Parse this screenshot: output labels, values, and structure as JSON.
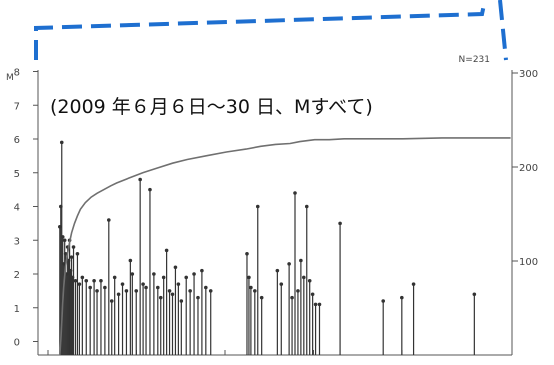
{
  "annotation": "(2009 年６月６日〜30 日、Mすべて)",
  "n_label": "N=231",
  "colors": {
    "frame": "#1e6fd0",
    "axis": "#555555",
    "stem": "#333333",
    "cum_line": "#707070"
  },
  "chart_data": {
    "type": "line",
    "title": "",
    "xlabel": "",
    "ylabel": "M",
    "y2label": "",
    "ylim": [
      0,
      8.6
    ],
    "y2lim": [
      0,
      300
    ],
    "yticks": [
      0,
      1,
      2,
      3,
      4,
      5,
      6,
      7,
      8
    ],
    "y2ticks": [
      100,
      200,
      300
    ],
    "grid": false,
    "legend": "none",
    "series": [
      {
        "kind": "stem",
        "points": [
          {
            "x": 10,
            "y": 3.4
          },
          {
            "x": 11,
            "y": 4.0
          },
          {
            "x": 12,
            "y": 5.9
          },
          {
            "x": 13,
            "y": 3.1
          },
          {
            "x": 14,
            "y": 2.3
          },
          {
            "x": 15,
            "y": 3.0
          },
          {
            "x": 16,
            "y": 2.6
          },
          {
            "x": 17,
            "y": 2.0
          },
          {
            "x": 18,
            "y": 2.8
          },
          {
            "x": 19,
            "y": 2.4
          },
          {
            "x": 20,
            "y": 3.0
          },
          {
            "x": 21,
            "y": 2.1
          },
          {
            "x": 22,
            "y": 2.5
          },
          {
            "x": 23,
            "y": 1.9
          },
          {
            "x": 24,
            "y": 2.8
          },
          {
            "x": 26,
            "y": 1.8
          },
          {
            "x": 28,
            "y": 2.6
          },
          {
            "x": 30,
            "y": 1.7
          },
          {
            "x": 33,
            "y": 1.9
          },
          {
            "x": 37,
            "y": 1.8
          },
          {
            "x": 41,
            "y": 1.6
          },
          {
            "x": 45,
            "y": 1.8
          },
          {
            "x": 48,
            "y": 1.5
          },
          {
            "x": 52,
            "y": 1.8
          },
          {
            "x": 56,
            "y": 1.6
          },
          {
            "x": 60,
            "y": 3.6
          },
          {
            "x": 63,
            "y": 1.2
          },
          {
            "x": 66,
            "y": 1.9
          },
          {
            "x": 70,
            "y": 1.4
          },
          {
            "x": 74,
            "y": 1.7
          },
          {
            "x": 78,
            "y": 1.5
          },
          {
            "x": 82,
            "y": 2.4
          },
          {
            "x": 84,
            "y": 2.0
          },
          {
            "x": 88,
            "y": 1.5
          },
          {
            "x": 92,
            "y": 4.8
          },
          {
            "x": 95,
            "y": 1.7
          },
          {
            "x": 98,
            "y": 1.6
          },
          {
            "x": 102,
            "y": 4.5
          },
          {
            "x": 106,
            "y": 2.0
          },
          {
            "x": 110,
            "y": 1.6
          },
          {
            "x": 113,
            "y": 1.3
          },
          {
            "x": 116,
            "y": 1.9
          },
          {
            "x": 119,
            "y": 2.7
          },
          {
            "x": 122,
            "y": 1.5
          },
          {
            "x": 125,
            "y": 1.4
          },
          {
            "x": 128,
            "y": 2.2
          },
          {
            "x": 131,
            "y": 1.7
          },
          {
            "x": 134,
            "y": 1.2
          },
          {
            "x": 139,
            "y": 1.9
          },
          {
            "x": 143,
            "y": 1.5
          },
          {
            "x": 147,
            "y": 2.0
          },
          {
            "x": 151,
            "y": 1.3
          },
          {
            "x": 155,
            "y": 2.1
          },
          {
            "x": 159,
            "y": 1.6
          },
          {
            "x": 164,
            "y": 1.5
          },
          {
            "x": 201,
            "y": 2.6
          },
          {
            "x": 203,
            "y": 1.9
          },
          {
            "x": 205,
            "y": 1.6
          },
          {
            "x": 209,
            "y": 1.5
          },
          {
            "x": 212,
            "y": 4.0
          },
          {
            "x": 216,
            "y": 1.3
          },
          {
            "x": 232,
            "y": 2.1
          },
          {
            "x": 236,
            "y": 1.7
          },
          {
            "x": 244,
            "y": 2.3
          },
          {
            "x": 247,
            "y": 1.3
          },
          {
            "x": 250,
            "y": 4.4
          },
          {
            "x": 253,
            "y": 1.5
          },
          {
            "x": 256,
            "y": 2.4
          },
          {
            "x": 259,
            "y": 1.9
          },
          {
            "x": 262,
            "y": 4.0
          },
          {
            "x": 265,
            "y": 1.8
          },
          {
            "x": 268,
            "y": 1.4
          },
          {
            "x": 271,
            "y": 1.1
          },
          {
            "x": 275,
            "y": 1.1
          },
          {
            "x": 296,
            "y": 3.5
          },
          {
            "x": 340,
            "y": 1.2
          },
          {
            "x": 359,
            "y": 1.3
          },
          {
            "x": 371,
            "y": 1.7
          },
          {
            "x": 433,
            "y": 1.4
          }
        ]
      },
      {
        "kind": "cumulative",
        "axis": "right",
        "x": [
          10,
          11,
          12,
          13,
          14,
          15,
          16,
          18,
          20,
          22,
          25,
          28,
          31,
          36,
          42,
          48,
          55,
          62,
          68,
          80,
          95,
          110,
          125,
          140,
          160,
          180,
          200,
          215,
          230,
          245,
          255,
          262,
          270,
          285,
          300,
          330,
          360,
          400,
          440,
          470
        ],
        "y": [
          0,
          15,
          35,
          55,
          72,
          84,
          95,
          108,
          120,
          130,
          140,
          148,
          155,
          162,
          168,
          172,
          176,
          180,
          183,
          188,
          194,
          199,
          204,
          208,
          212,
          216,
          219,
          222,
          224,
          225,
          227,
          228,
          229,
          229,
          230,
          230,
          230,
          231,
          231,
          231
        ]
      }
    ]
  }
}
